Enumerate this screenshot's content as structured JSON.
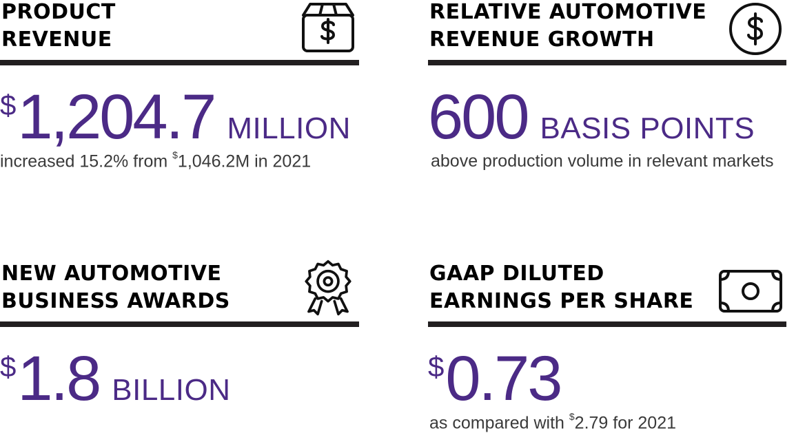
{
  "accent": "#4b2a86",
  "tiles": {
    "product_revenue": {
      "title_line1": "PRODUCT",
      "title_line2": "REVENUE",
      "icon": "box-dollar-icon",
      "currency": "$",
      "value": "1,204.7",
      "unit": "MILLION",
      "note_before": "increased 15.2% from ",
      "note_currency": "$",
      "note_after": "1,046.2M in 2021"
    },
    "revenue_growth": {
      "title_line1": "RELATIVE AUTOMOTIVE",
      "title_line2": "REVENUE GROWTH",
      "icon": "dollar-circle-icon",
      "value": "600",
      "unit": "BASIS POINTS",
      "note": "above production volume in relevant markets"
    },
    "business_awards": {
      "title_line1": "NEW AUTOMOTIVE",
      "title_line2": "BUSINESS AWARDS",
      "icon": "award-badge-icon",
      "currency": "$",
      "value": "1.8",
      "unit": "BILLION"
    },
    "gaap_eps": {
      "title_line1": "GAAP DILUTED",
      "title_line2": "EARNINGS PER SHARE",
      "icon": "banknote-icon",
      "currency": "$",
      "value": "0.73",
      "note_before": "as compared with ",
      "note_currency": "$",
      "note_after": "2.79 for 2021"
    }
  }
}
